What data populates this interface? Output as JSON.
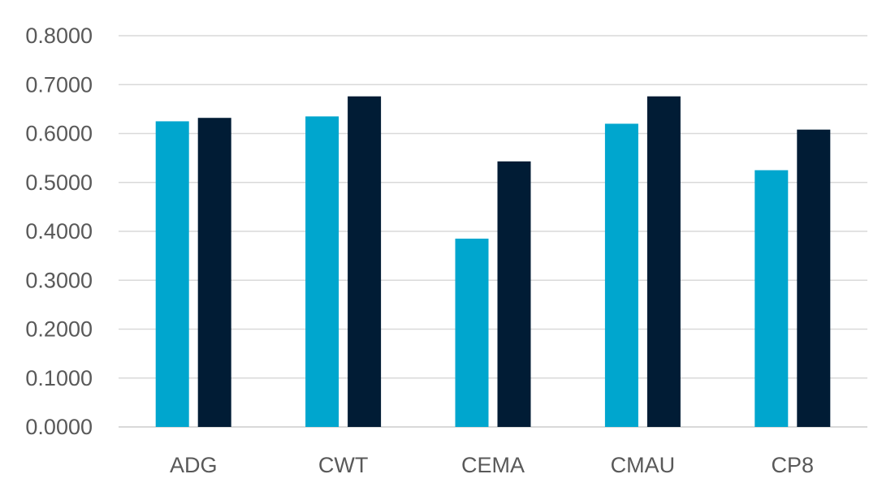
{
  "chart_data": {
    "type": "bar",
    "categories": [
      "ADG",
      "CWT",
      "CEMA",
      "CMAU",
      "CP8"
    ],
    "series": [
      {
        "color": "#00A6CE",
        "values": [
          0.625,
          0.635,
          0.385,
          0.62,
          0.525
        ]
      },
      {
        "color": "#011C35",
        "values": [
          0.632,
          0.676,
          0.543,
          0.676,
          0.608
        ]
      }
    ],
    "y_ticks": [
      "0.0000",
      "0.1000",
      "0.2000",
      "0.3000",
      "0.4000",
      "0.5000",
      "0.6000",
      "0.7000",
      "0.8000"
    ],
    "ylim": [
      0,
      0.8
    ],
    "grid": true,
    "legend": "none",
    "gridline_color": "#D9D9D9"
  }
}
